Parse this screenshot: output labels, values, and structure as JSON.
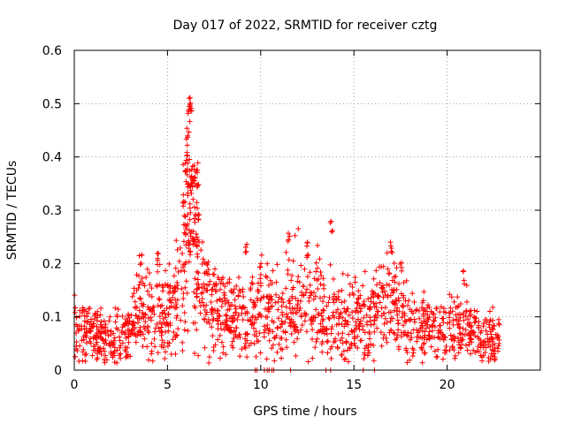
{
  "chart_data": {
    "type": "scatter",
    "title": "Day 017 of 2022, SRMTID for receiver cztg",
    "xlabel": "GPS time / hours",
    "ylabel": "SRMTID / TECUs",
    "xlim": [
      0,
      25
    ],
    "ylim": [
      0,
      0.6
    ],
    "xticks": [
      "0",
      "5",
      "10",
      "15",
      "20"
    ],
    "xtick_values": [
      0,
      5,
      10,
      15,
      20
    ],
    "yticks": [
      "0",
      "0.1",
      "0.2",
      "0.3",
      "0.4",
      "0.5",
      "0.6"
    ],
    "ytick_values": [
      0,
      0.1,
      0.2,
      0.3,
      0.4,
      0.5,
      0.6
    ],
    "grid": true,
    "marker": "+",
    "marker_color": "#ff0000",
    "series": [
      {
        "name": "SRMTID",
        "x_range": [
          0,
          22.8
        ],
        "baseline_profile": [
          [
            0,
            0.08
          ],
          [
            1,
            0.07
          ],
          [
            2,
            0.06
          ],
          [
            3,
            0.07
          ],
          [
            3.5,
            0.11
          ],
          [
            4,
            0.09
          ],
          [
            4.5,
            0.12
          ],
          [
            5,
            0.1
          ],
          [
            5.5,
            0.13
          ],
          [
            6,
            0.22
          ],
          [
            6.2,
            0.3
          ],
          [
            6.5,
            0.2
          ],
          [
            7,
            0.13
          ],
          [
            8,
            0.1
          ],
          [
            9,
            0.09
          ],
          [
            10,
            0.11
          ],
          [
            11,
            0.1
          ],
          [
            12,
            0.13
          ],
          [
            13,
            0.12
          ],
          [
            14,
            0.1
          ],
          [
            15,
            0.09
          ],
          [
            16,
            0.1
          ],
          [
            16.5,
            0.13
          ],
          [
            17,
            0.12
          ],
          [
            18,
            0.09
          ],
          [
            19,
            0.08
          ],
          [
            20,
            0.07
          ],
          [
            21,
            0.08
          ],
          [
            22,
            0.06
          ],
          [
            22.8,
            0.06
          ]
        ],
        "peaks": [
          {
            "x": 6.05,
            "y": 0.46
          },
          {
            "x": 6.1,
            "y": 0.43
          },
          {
            "x": 6.15,
            "y": 0.49
          },
          {
            "x": 6.2,
            "y": 0.52
          },
          {
            "x": 6.25,
            "y": 0.51
          },
          {
            "x": 6.0,
            "y": 0.4
          },
          {
            "x": 6.3,
            "y": 0.36
          },
          {
            "x": 5.9,
            "y": 0.33
          },
          {
            "x": 6.5,
            "y": 0.38
          },
          {
            "x": 6.6,
            "y": 0.37
          },
          {
            "x": 6.7,
            "y": 0.3
          },
          {
            "x": 3.6,
            "y": 0.22
          },
          {
            "x": 4.5,
            "y": 0.22
          },
          {
            "x": 9.2,
            "y": 0.25
          },
          {
            "x": 10.0,
            "y": 0.22
          },
          {
            "x": 11.5,
            "y": 0.26
          },
          {
            "x": 12.5,
            "y": 0.24
          },
          {
            "x": 13.8,
            "y": 0.28
          },
          {
            "x": 17.0,
            "y": 0.25
          },
          {
            "x": 17.5,
            "y": 0.21
          },
          {
            "x": 20.9,
            "y": 0.19
          }
        ],
        "zero_points_x": [
          9.7,
          9.8,
          10.2,
          10.35,
          10.45,
          10.6,
          10.7,
          11.6,
          13.5,
          13.75,
          15.5,
          16.1
        ]
      }
    ]
  }
}
